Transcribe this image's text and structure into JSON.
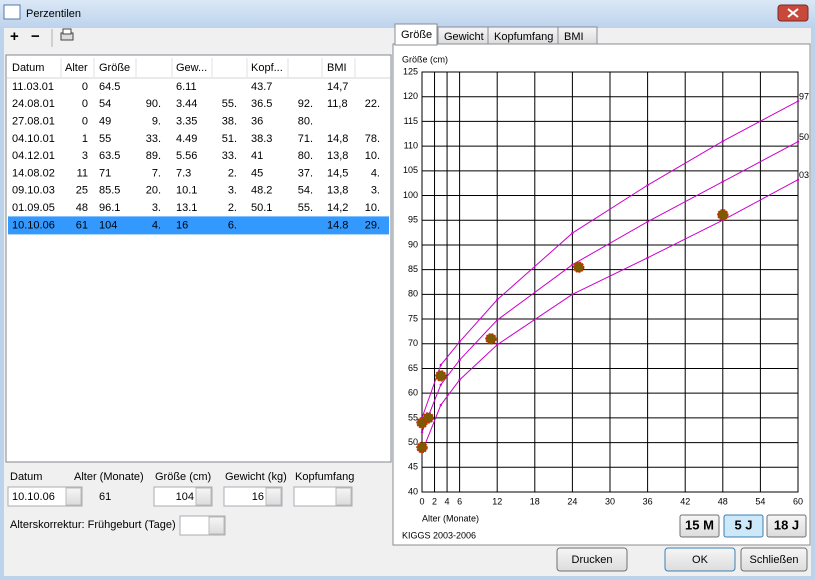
{
  "window": {
    "title": "Perzentilen"
  },
  "toolbar": {
    "add": "+",
    "remove": "−"
  },
  "table": {
    "headers": [
      "Datum",
      "Alter",
      "Größe",
      null,
      "Gew...",
      null,
      "Kopf...",
      null,
      "BMI",
      null
    ],
    "rows": [
      [
        "11.03.01",
        "0",
        "64.5",
        null,
        "6.11",
        null,
        "43.7",
        null,
        "14,7",
        null
      ],
      [
        "24.08.01",
        "0",
        "54",
        "90.",
        "3.44",
        "55.",
        "36.5",
        "92.",
        "11,8",
        "22."
      ],
      [
        "27.08.01",
        "0",
        "49",
        "9.",
        "3.35",
        "38.",
        "36",
        "80.",
        null,
        null
      ],
      [
        "04.10.01",
        "1",
        "55",
        "33.",
        "4.49",
        "51.",
        "38.3",
        "71.",
        "14,8",
        "78."
      ],
      [
        "04.12.01",
        "3",
        "63.5",
        "89.",
        "5.56",
        "33.",
        "41",
        "80.",
        "13,8",
        "10."
      ],
      [
        "14.08.02",
        "11",
        "71",
        "7.",
        "7.3",
        "2.",
        "45",
        "37.",
        "14,5",
        "4."
      ],
      [
        "09.10.03",
        "25",
        "85.5",
        "20.",
        "10.1",
        "3.",
        "48.2",
        "54.",
        "13,8",
        "3."
      ],
      [
        "01.09.05",
        "48",
        "96.1",
        "3.",
        "13.1",
        "2.",
        "50.1",
        "55.",
        "14,2",
        "10."
      ],
      [
        "10.10.06",
        "61",
        "104",
        "4.",
        "16",
        "6.",
        null,
        null,
        "14.8",
        "29."
      ]
    ],
    "selected_row": 8
  },
  "form": {
    "labels": [
      "Datum",
      "Alter (Monate)",
      "Größe (cm)",
      "Gewicht (kg)",
      "Kopfumfang"
    ],
    "date": "10.10.06",
    "age": "61",
    "height": "104",
    "weight": "16",
    "correction_label": "Alterskorrektur: Frühgeburt (Tage)"
  },
  "tabs": {
    "items": [
      "Größe",
      "Gewicht",
      "Kopfumfang",
      "BMI"
    ],
    "active": 0
  },
  "chart_data": {
    "type": "line",
    "y_label": "Größe (cm)",
    "x_label": "Alter (Monate)",
    "source": "KIGGS 2003-2006",
    "x": [
      0,
      3,
      6,
      12,
      24,
      36,
      48,
      60
    ],
    "series": [
      {
        "name": "97",
        "color": "#cc00cc",
        "values": [
          55,
          65.7,
          70.4,
          78.9,
          92.4,
          102.1,
          111,
          119.1
        ]
      },
      {
        "name": "50",
        "color": "#cc00cc",
        "values": [
          52.1,
          61.7,
          66.7,
          74.8,
          86,
          94.7,
          102.8,
          110.9
        ]
      },
      {
        "name": "03",
        "color": "#cc00cc",
        "values": [
          48.1,
          57.6,
          62.7,
          69.8,
          80,
          87.4,
          95,
          103.2
        ]
      }
    ],
    "measurements": {
      "color": "#7b5a00",
      "x": [
        0,
        0,
        1,
        3,
        11,
        25,
        48
      ],
      "values": [
        54,
        49,
        55,
        63.5,
        71,
        85.5,
        96.1
      ]
    },
    "xlim": [
      0,
      60
    ],
    "ylim": [
      40,
      125
    ],
    "xticks": [
      0,
      2,
      4,
      6,
      12,
      18,
      24,
      30,
      36,
      42,
      48,
      54,
      60
    ],
    "yticks": [
      40,
      45,
      50,
      55,
      60,
      65,
      70,
      75,
      80,
      85,
      90,
      95,
      100,
      105,
      110,
      115,
      120,
      125
    ],
    "grid": true
  },
  "range_buttons": {
    "items": [
      "15 M",
      "5 J",
      "18 J"
    ],
    "active": 1
  },
  "footer": {
    "buttons": [
      "Drucken",
      "OK",
      "Schließen"
    ]
  }
}
